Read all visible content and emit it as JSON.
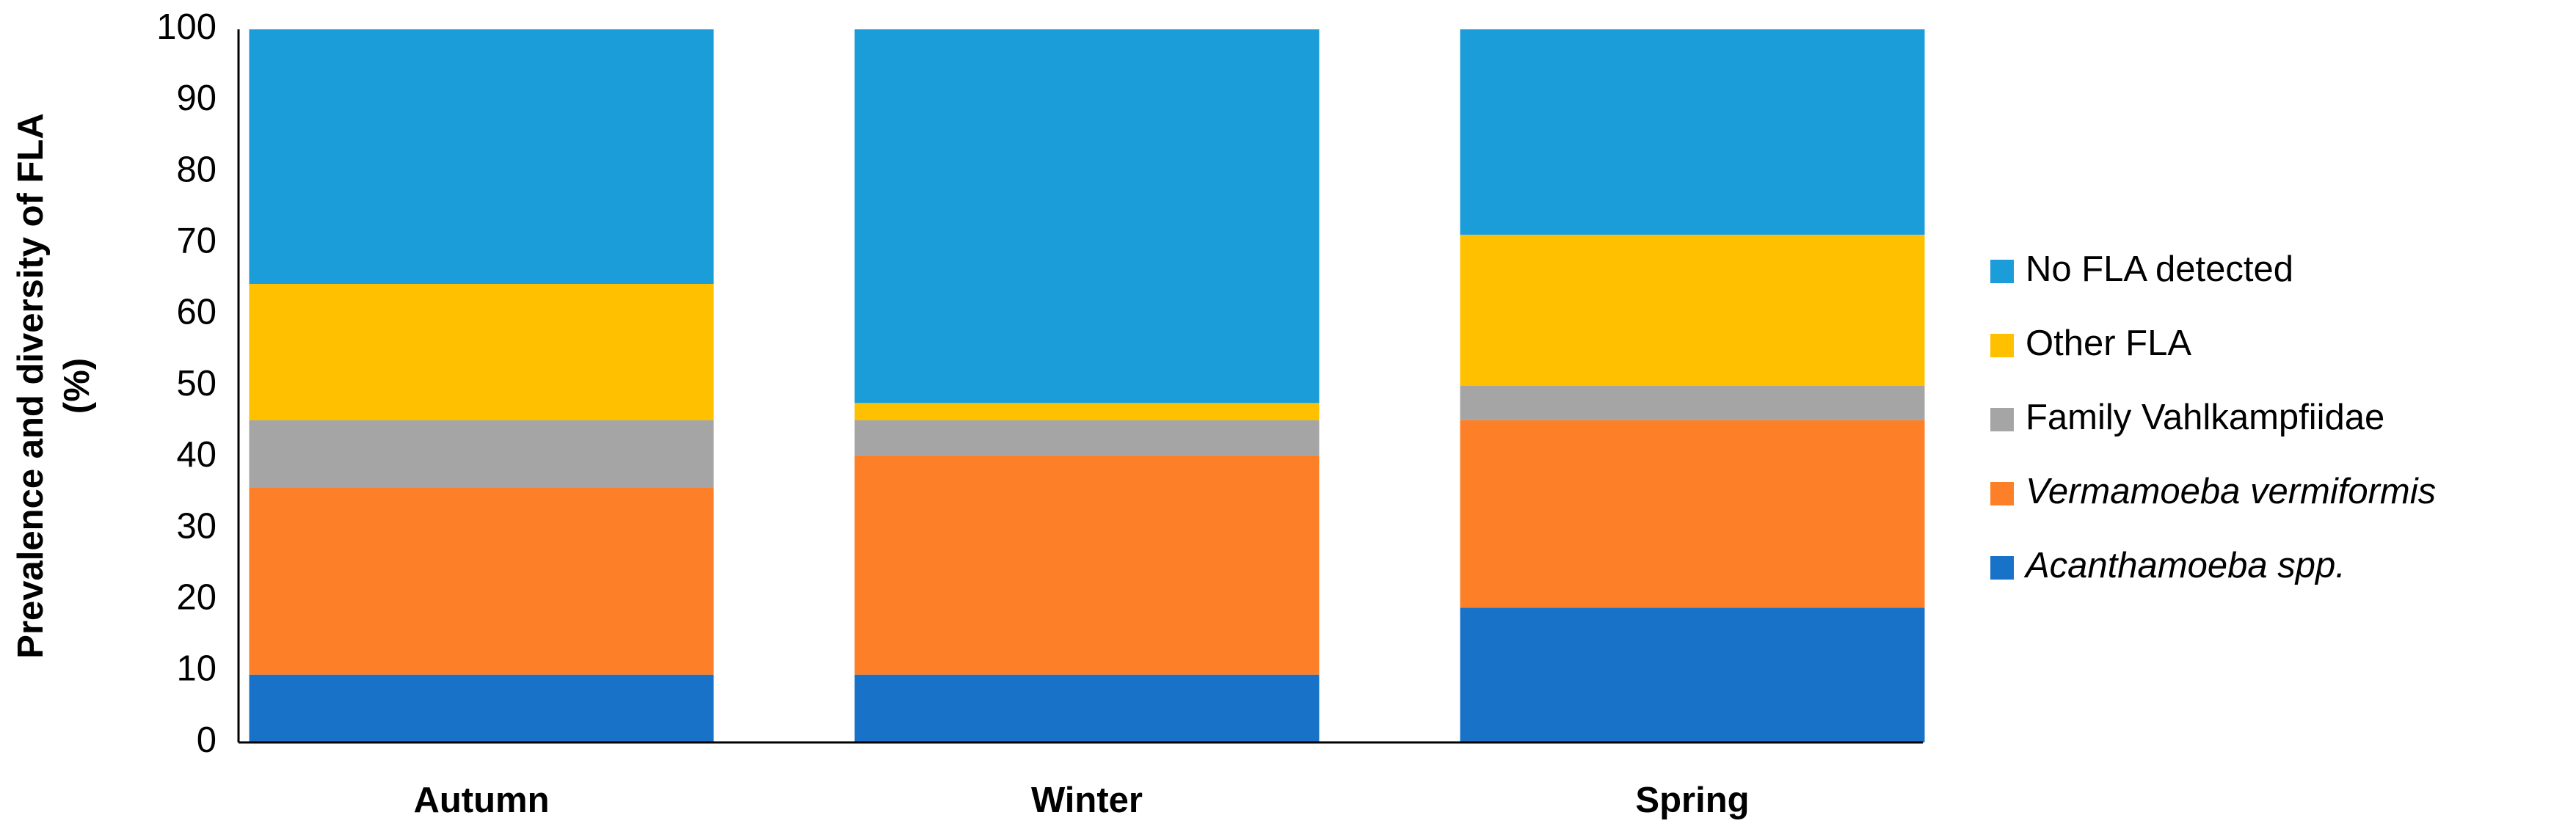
{
  "chart_data": {
    "type": "stacked_bar",
    "ylabel": [
      "Prevalence and diversity of FLA",
      "(%)"
    ],
    "categories": [
      "Autumn",
      "Winter",
      "Spring"
    ],
    "series": [
      {
        "name": "Acanthamoeba spp.",
        "color": "#1873c8",
        "italic": true,
        "values": [
          9.5,
          9.5,
          18.9
        ]
      },
      {
        "name": "Vermamoeba vermiformis",
        "color": "#fd7f27",
        "italic": true,
        "values": [
          26.2,
          30.8,
          26.3
        ]
      },
      {
        "name": "Family Vahlkampfiidae",
        "color": "#a5a5a5",
        "italic": false,
        "values": [
          9.5,
          4.9,
          4.8
        ]
      },
      {
        "name": "Other FLA",
        "color": "#ffc000",
        "italic": false,
        "values": [
          19.1,
          2.4,
          21.2
        ]
      },
      {
        "name": "No FLA detected",
        "color": "#1a9dd9",
        "italic": false,
        "values": [
          35.7,
          52.4,
          28.8
        ]
      }
    ],
    "ylim": [
      0,
      100
    ],
    "yticks": [
      0,
      10,
      20,
      30,
      40,
      50,
      60,
      70,
      80,
      90,
      100
    ],
    "grid": false,
    "legend": "right"
  }
}
